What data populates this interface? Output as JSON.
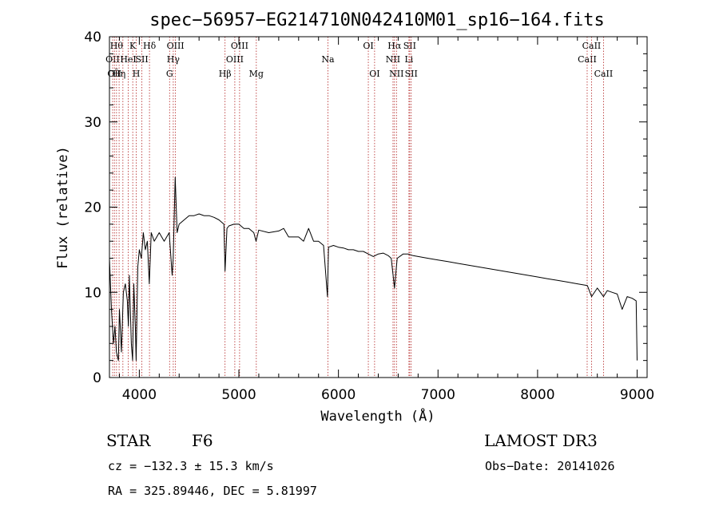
{
  "chart_data": {
    "type": "line",
    "title": "spec−56957−EG214710N042410M01_sp16−164.fits",
    "xlabel": "Wavelength (Å)",
    "ylabel": "Flux (relative)",
    "xlim": [
      3700,
      9100
    ],
    "ylim": [
      0,
      40
    ],
    "x_ticks": [
      {
        "value": 4000,
        "label": "4000"
      },
      {
        "value": 5000,
        "label": "5000"
      },
      {
        "value": 6000,
        "label": "6000"
      },
      {
        "value": 7000,
        "label": "7000"
      },
      {
        "value": 8000,
        "label": "8000"
      },
      {
        "value": 9000,
        "label": "9000"
      }
    ],
    "y_ticks": [
      {
        "value": 0,
        "label": "0"
      },
      {
        "value": 10,
        "label": "10"
      },
      {
        "value": 20,
        "label": "20"
      },
      {
        "value": 30,
        "label": "30"
      },
      {
        "value": 40,
        "label": "40"
      }
    ],
    "series": [
      {
        "name": "flux",
        "color": "#000000",
        "points": [
          [
            3700,
            14.0
          ],
          [
            3720,
            8.0
          ],
          [
            3740,
            4.0
          ],
          [
            3755,
            6.0
          ],
          [
            3770,
            3.0
          ],
          [
            3790,
            2.0
          ],
          [
            3800,
            8.0
          ],
          [
            3820,
            3.0
          ],
          [
            3840,
            10.0
          ],
          [
            3860,
            11.0
          ],
          [
            3880,
            9.0
          ],
          [
            3890,
            6.0
          ],
          [
            3900,
            12.0
          ],
          [
            3920,
            4.0
          ],
          [
            3933,
            2.0
          ],
          [
            3945,
            11.0
          ],
          [
            3960,
            6.0
          ],
          [
            3968,
            2.0
          ],
          [
            3985,
            13.0
          ],
          [
            4000,
            15.0
          ],
          [
            4020,
            14.0
          ],
          [
            4040,
            17.0
          ],
          [
            4060,
            15.0
          ],
          [
            4080,
            16.0
          ],
          [
            4100,
            11.0
          ],
          [
            4120,
            17.0
          ],
          [
            4150,
            16.0
          ],
          [
            4200,
            17.0
          ],
          [
            4250,
            16.0
          ],
          [
            4300,
            17.0
          ],
          [
            4330,
            12.0
          ],
          [
            4340,
            14.0
          ],
          [
            4360,
            23.5
          ],
          [
            4380,
            17.0
          ],
          [
            4400,
            18.0
          ],
          [
            4450,
            18.5
          ],
          [
            4500,
            19.0
          ],
          [
            4550,
            19.0
          ],
          [
            4600,
            19.2
          ],
          [
            4650,
            19.0
          ],
          [
            4700,
            19.0
          ],
          [
            4750,
            18.8
          ],
          [
            4800,
            18.5
          ],
          [
            4850,
            18.0
          ],
          [
            4861,
            12.5
          ],
          [
            4880,
            17.5
          ],
          [
            4900,
            17.8
          ],
          [
            4950,
            18.0
          ],
          [
            5000,
            18.0
          ],
          [
            5050,
            17.5
          ],
          [
            5100,
            17.5
          ],
          [
            5150,
            17.0
          ],
          [
            5172,
            16.0
          ],
          [
            5200,
            17.3
          ],
          [
            5300,
            17.0
          ],
          [
            5400,
            17.2
          ],
          [
            5450,
            17.5
          ],
          [
            5500,
            16.5
          ],
          [
            5600,
            16.5
          ],
          [
            5650,
            16.0
          ],
          [
            5700,
            17.5
          ],
          [
            5750,
            16.0
          ],
          [
            5800,
            16.0
          ],
          [
            5850,
            15.5
          ],
          [
            5890,
            9.5
          ],
          [
            5900,
            15.3
          ],
          [
            5950,
            15.5
          ],
          [
            6000,
            15.3
          ],
          [
            6050,
            15.2
          ],
          [
            6100,
            15.0
          ],
          [
            6150,
            15.0
          ],
          [
            6200,
            14.8
          ],
          [
            6250,
            14.8
          ],
          [
            6300,
            14.5
          ],
          [
            6350,
            14.2
          ],
          [
            6400,
            14.5
          ],
          [
            6450,
            14.6
          ],
          [
            6500,
            14.3
          ],
          [
            6530,
            14.0
          ],
          [
            6563,
            10.5
          ],
          [
            6590,
            14.0
          ],
          [
            6650,
            14.5
          ],
          [
            6700,
            14.5
          ],
          [
            6750,
            14.3
          ],
          [
            6800,
            14.2
          ],
          [
            6900,
            14.0
          ],
          [
            7000,
            13.8
          ],
          [
            7100,
            13.6
          ],
          [
            7200,
            13.4
          ],
          [
            7300,
            13.2
          ],
          [
            7400,
            13.0
          ],
          [
            7500,
            12.8
          ],
          [
            7600,
            12.6
          ],
          [
            7700,
            12.4
          ],
          [
            7800,
            12.2
          ],
          [
            7900,
            12.0
          ],
          [
            8000,
            11.8
          ],
          [
            8100,
            11.6
          ],
          [
            8200,
            11.4
          ],
          [
            8300,
            11.2
          ],
          [
            8400,
            11.0
          ],
          [
            8500,
            10.8
          ],
          [
            8542,
            9.5
          ],
          [
            8600,
            10.5
          ],
          [
            8662,
            9.5
          ],
          [
            8700,
            10.2
          ],
          [
            8750,
            10.0
          ],
          [
            8800,
            9.8
          ],
          [
            8850,
            8.0
          ],
          [
            8900,
            9.5
          ],
          [
            8950,
            9.3
          ],
          [
            8990,
            9.0
          ],
          [
            9000,
            2.0
          ]
        ]
      }
    ],
    "line_color": "#b22222",
    "lines": [
      {
        "x": 3732,
        "label": "OΙΙ",
        "row": 2
      },
      {
        "x": 3750,
        "label": "OΙΙ",
        "row": 3
      },
      {
        "x": 3771,
        "label": "Hθ",
        "row": 1
      },
      {
        "x": 3797,
        "label": "H̃η",
        "row": 3
      },
      {
        "x": 3835,
        "label": "",
        "row": 0
      },
      {
        "x": 3889,
        "label": "HeΙ",
        "row": 2
      },
      {
        "x": 3934,
        "label": "K",
        "row": 1
      },
      {
        "x": 3969,
        "label": "H",
        "row": 3
      },
      {
        "x": 4026,
        "label": "SΙΙ",
        "row": 2
      },
      {
        "x": 4102,
        "label": "Hδ",
        "row": 1
      },
      {
        "x": 4304,
        "label": "G",
        "row": 3
      },
      {
        "x": 4341,
        "label": "Hγ",
        "row": 2
      },
      {
        "x": 4363,
        "label": "OΙΙΙ",
        "row": 1
      },
      {
        "x": 4861,
        "label": "Hβ",
        "row": 3
      },
      {
        "x": 4959,
        "label": "OΙΙΙ",
        "row": 2
      },
      {
        "x": 5007,
        "label": "OΙΙΙ",
        "row": 1
      },
      {
        "x": 5175,
        "label": "Mg",
        "row": 3
      },
      {
        "x": 5894,
        "label": "Na",
        "row": 2
      },
      {
        "x": 6300,
        "label": "OΙ",
        "row": 1
      },
      {
        "x": 6363,
        "label": "OΙ",
        "row": 3
      },
      {
        "x": 6548,
        "label": "NΙΙ",
        "row": 2
      },
      {
        "x": 6563,
        "label": "Hα",
        "row": 1
      },
      {
        "x": 6583,
        "label": "NΙΙ",
        "row": 3
      },
      {
        "x": 6708,
        "label": "Li",
        "row": 2
      },
      {
        "x": 6716,
        "label": "SΙΙ",
        "row": 1
      },
      {
        "x": 6731,
        "label": "SΙΙ",
        "row": 3
      },
      {
        "x": 8498,
        "label": "CaΙΙ",
        "row": 2
      },
      {
        "x": 8542,
        "label": "CaΙΙ",
        "row": 1
      },
      {
        "x": 8662,
        "label": "CaΙΙ",
        "row": 3
      }
    ]
  },
  "info": {
    "object_class": "STAR",
    "subclass": "F6",
    "survey": "LAMOST DR3",
    "cz": "cz = −132.3 ± 15.3 km/s",
    "obs_date": "Obs−Date: 20141026",
    "radec": "RA = 325.89446, DEC =   5.81997"
  }
}
